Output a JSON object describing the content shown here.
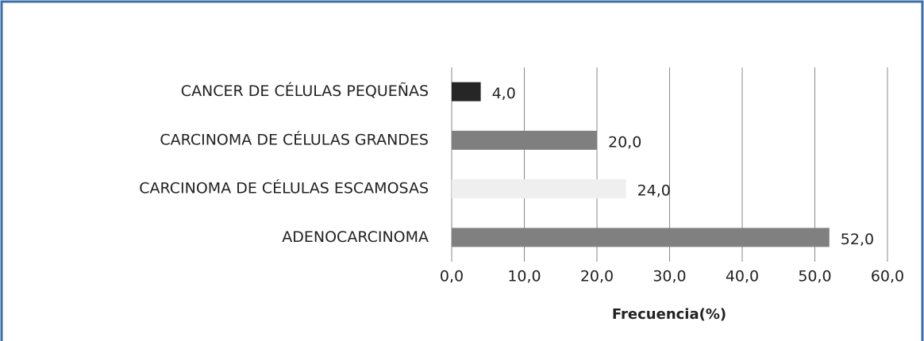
{
  "chart_data": {
    "type": "bar",
    "orientation": "horizontal",
    "categories": [
      "CANCER DE CÉLULAS PEQUEÑAS",
      "CARCINOMA DE CÉLULAS GRANDES",
      "CARCINOMA DE CÉLULAS ESCAMOSAS",
      "ADENOCARCINOMA"
    ],
    "values": [
      4,
      20,
      24,
      52
    ],
    "value_labels": [
      "4,0",
      "20,0",
      "24,0",
      "52,0"
    ],
    "colors": [
      "#262626",
      "#7f7f7f",
      "#efefef",
      "#808080"
    ],
    "xlim": [
      0,
      60
    ],
    "xticks": [
      {
        "value": 0,
        "label": "0,0"
      },
      {
        "value": 10,
        "label": "10,0"
      },
      {
        "value": 20,
        "label": "20,0"
      },
      {
        "value": 30,
        "label": "30,0"
      },
      {
        "value": 40,
        "label": "40,0"
      },
      {
        "value": 50,
        "label": "50,0"
      },
      {
        "value": 60,
        "label": "60,0"
      }
    ],
    "xlabel": "Frecuencia(%)",
    "grid": true
  }
}
